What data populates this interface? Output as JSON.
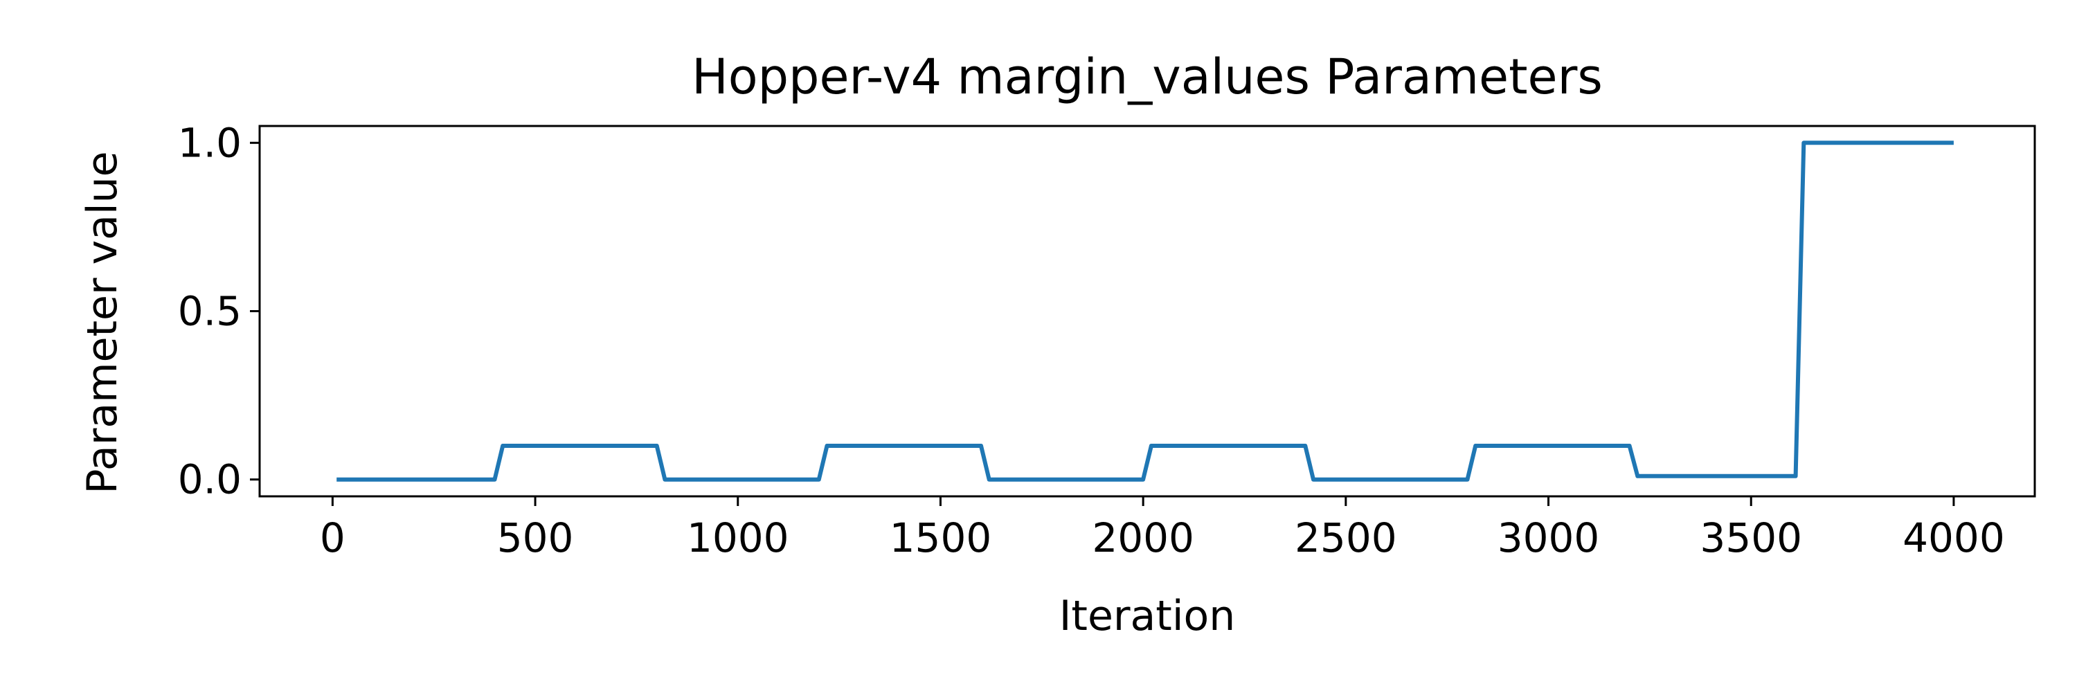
{
  "chart_data": {
    "type": "line",
    "title": "Hopper-v4 margin_values Parameters",
    "xlabel": "Iteration",
    "ylabel": "Parameter value",
    "xlim": [
      -180,
      4200
    ],
    "ylim": [
      -0.05,
      1.05
    ],
    "xticks": [
      0,
      500,
      1000,
      1500,
      2000,
      2500,
      3000,
      3500,
      4000
    ],
    "yticks": [
      0.0,
      0.5,
      1.0
    ],
    "ytick_labels": [
      "0.0",
      "0.5",
      "1.0"
    ],
    "grid": false,
    "legend": "none",
    "series": [
      {
        "color": "#1f77b4",
        "x": [
          10,
          400,
          420,
          800,
          820,
          1200,
          1220,
          1600,
          1620,
          2000,
          2020,
          2400,
          2420,
          2800,
          2820,
          3200,
          3220,
          3610,
          3630,
          4000
        ],
        "y": [
          0.0,
          0.0,
          0.1,
          0.1,
          0.0,
          0.0,
          0.1,
          0.1,
          0.0,
          0.0,
          0.1,
          0.1,
          0.0,
          0.0,
          0.1,
          0.1,
          0.01,
          0.01,
          1.0,
          1.0
        ]
      }
    ]
  }
}
